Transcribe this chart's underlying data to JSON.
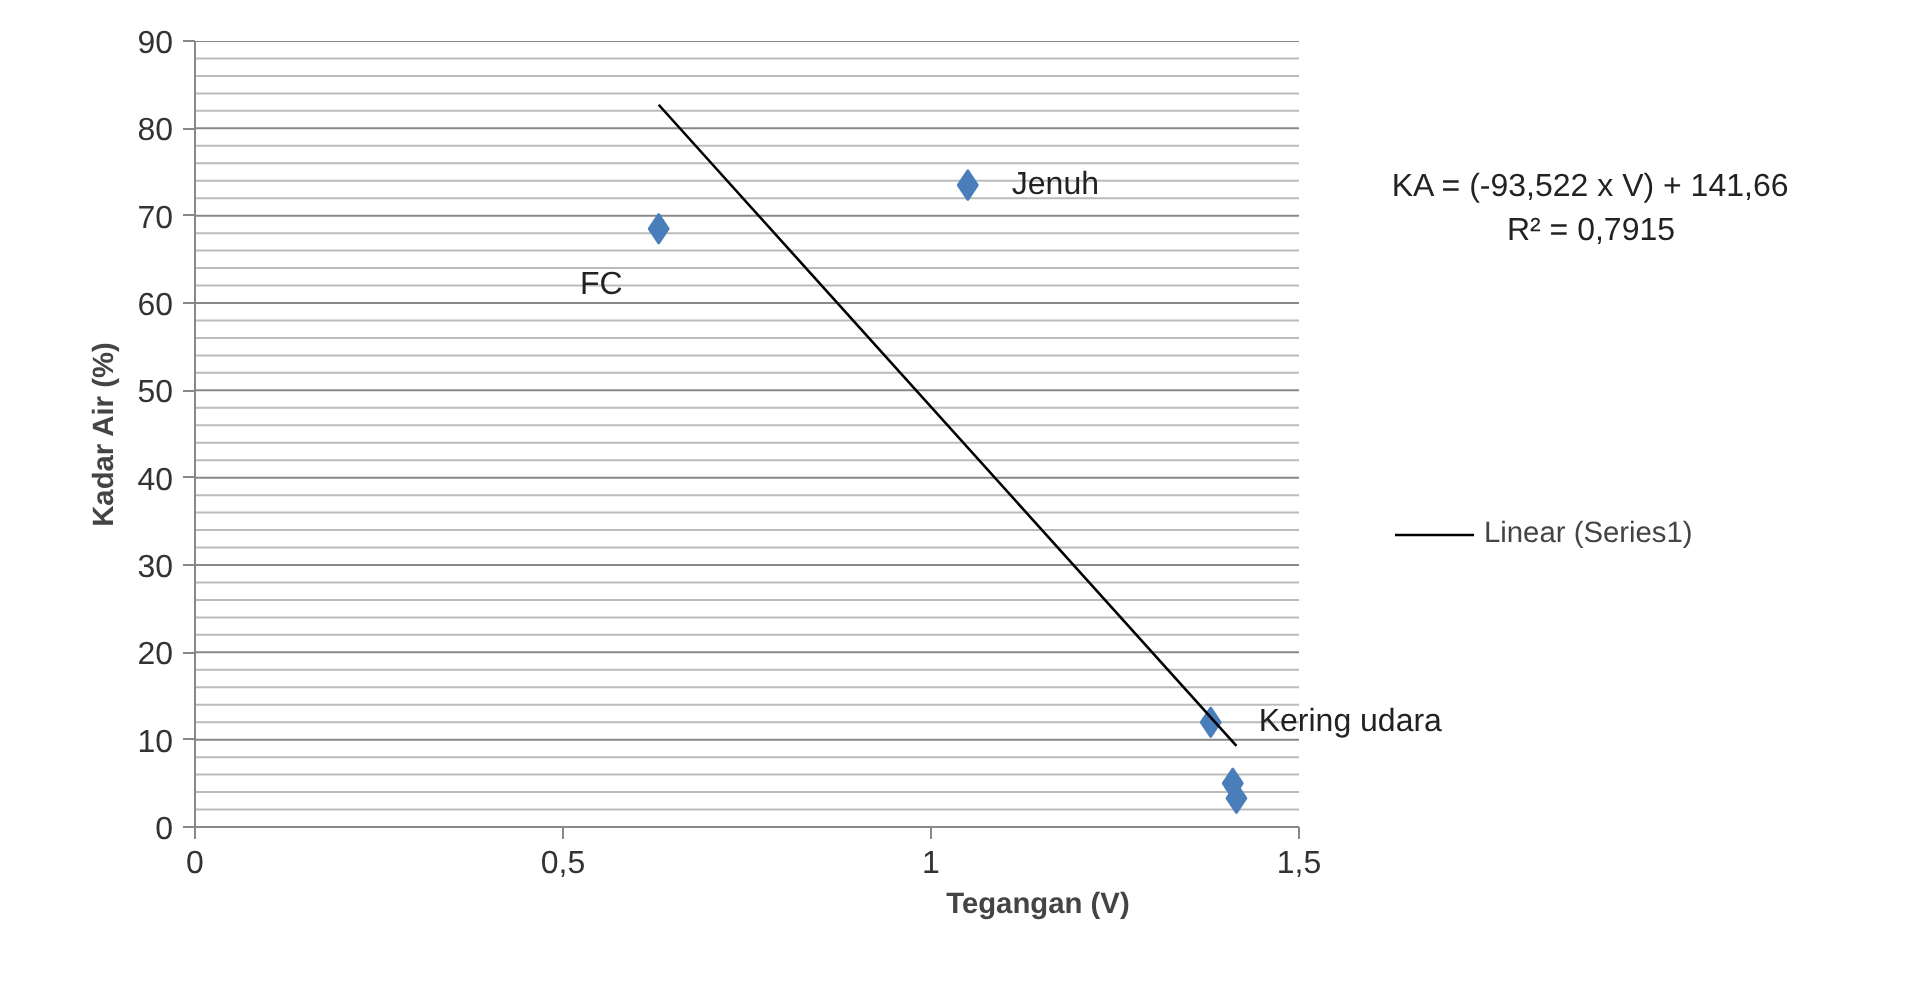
{
  "chart_data": {
    "type": "scatter",
    "xlabel": "Tegangan  (V)",
    "ylabel": "Kadar Air (%)",
    "xlim": [
      0,
      1.5
    ],
    "ylim": [
      0,
      90
    ],
    "xticks": [
      0,
      {
        "value": 0.5,
        "label": "0,5"
      },
      1,
      {
        "value": 1.5,
        "label": "1,5"
      }
    ],
    "yticks": [
      0,
      10,
      20,
      30,
      40,
      50,
      60,
      70,
      80,
      90
    ],
    "grid": "y",
    "legend": "right",
    "series": [
      {
        "marker": "diamond",
        "color": "#4a7ebb",
        "x": [
          0.63,
          1.05,
          1.38,
          1.41,
          1.415
        ],
        "values": [
          68.5,
          73.5,
          12,
          5,
          3.3
        ]
      },
      {
        "type": "line",
        "name": "Linear (Series1)",
        "color": "#000000",
        "x": [
          0.63,
          1.415
        ],
        "values": [
          82.7,
          9.3
        ]
      }
    ],
    "annotations": [
      {
        "text": "FC",
        "x": 0.63,
        "y": 68.5
      },
      {
        "text": "Jenuh",
        "x": 1.05,
        "y": 73.5
      },
      {
        "text": "Kering udara",
        "x": 1.38,
        "y": 12
      },
      "KA = (-93,522 x V) + 141,66",
      "R² = 0,7915"
    ]
  }
}
